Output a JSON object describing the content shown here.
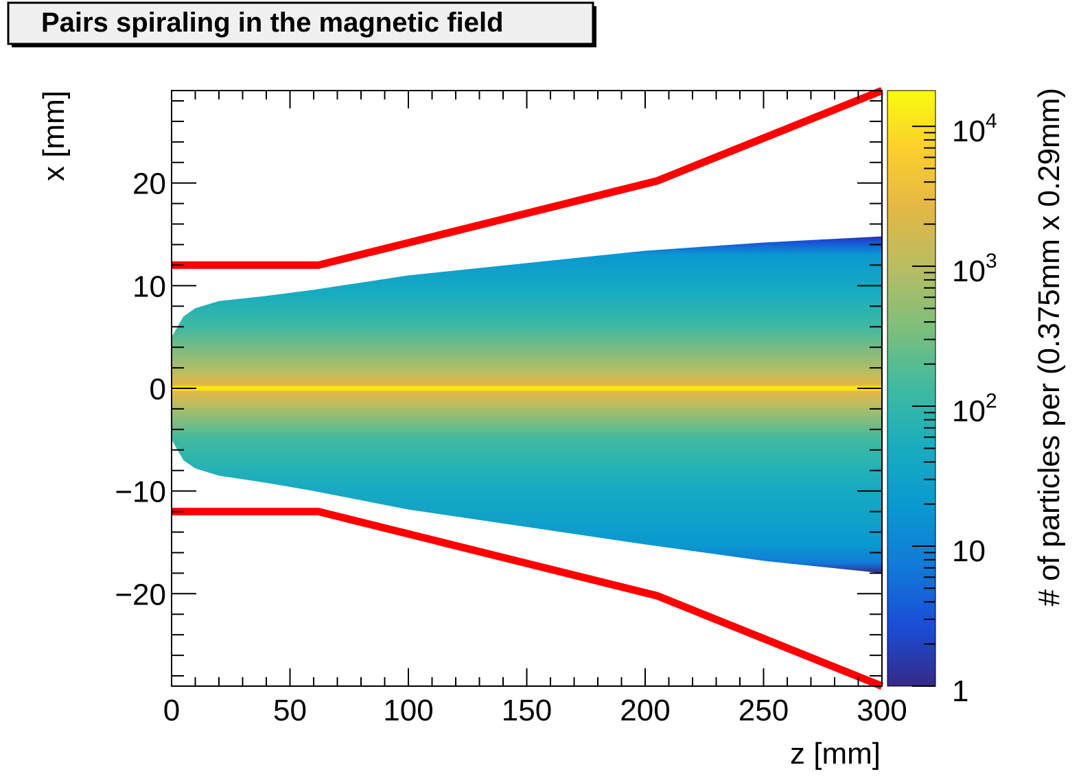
{
  "chart_data": {
    "type": "heatmap",
    "title": "Pairs spiraling in the magnetic field",
    "xlabel": "z [mm]",
    "ylabel": "x [mm]",
    "zlabel": "# of particles per (0.375mm x 0.29mm)",
    "xlim": [
      0,
      300
    ],
    "ylim": [
      -29,
      29
    ],
    "zlim": [
      1,
      18000
    ],
    "z_scale": "log",
    "x_ticks": [
      0,
      50,
      100,
      150,
      200,
      250,
      300
    ],
    "y_ticks": [
      -20,
      -10,
      0,
      10,
      20
    ],
    "z_ticks": [
      {
        "base": "1",
        "exp": "",
        "value": 1
      },
      {
        "base": "10",
        "exp": "",
        "value": 10
      },
      {
        "base": "10",
        "exp": "2",
        "value": 100
      },
      {
        "base": "10",
        "exp": "3",
        "value": 1000
      },
      {
        "base": "10",
        "exp": "4",
        "value": 10000
      }
    ],
    "distribution": {
      "upper_edge": [
        [
          0,
          5
        ],
        [
          5,
          7
        ],
        [
          10,
          7.8
        ],
        [
          20,
          8.5
        ],
        [
          40,
          9
        ],
        [
          60,
          9.6
        ],
        [
          100,
          11
        ],
        [
          150,
          12.2
        ],
        [
          200,
          13.4
        ],
        [
          250,
          14.2
        ],
        [
          300,
          14.8
        ]
      ],
      "lower_edge": [
        [
          0,
          -5
        ],
        [
          5,
          -7
        ],
        [
          10,
          -7.8
        ],
        [
          20,
          -8.5
        ],
        [
          40,
          -9.2
        ],
        [
          60,
          -10
        ],
        [
          100,
          -11.8
        ],
        [
          150,
          -13.5
        ],
        [
          200,
          -15.2
        ],
        [
          250,
          -16.8
        ],
        [
          300,
          -18
        ]
      ],
      "core_x": 0
    },
    "lines": [
      {
        "color": "#ff0000",
        "points": [
          [
            0,
            12
          ],
          [
            62,
            12
          ],
          [
            205,
            20.2
          ],
          [
            300,
            29
          ]
        ]
      },
      {
        "color": "#ff0000",
        "points": [
          [
            0,
            -12
          ],
          [
            62,
            -12
          ],
          [
            205,
            -20.2
          ],
          [
            300,
            -29
          ]
        ]
      }
    ],
    "colors": {
      "palette": [
        "#352a87",
        "#1a4dd6",
        "#1279d8",
        "#0a98d0",
        "#19acc0",
        "#3fbaa0",
        "#7dbf7c",
        "#b7bd62",
        "#e2b746",
        "#fcce2e",
        "#f9fb0e"
      ],
      "curve": "#ff0000"
    }
  }
}
